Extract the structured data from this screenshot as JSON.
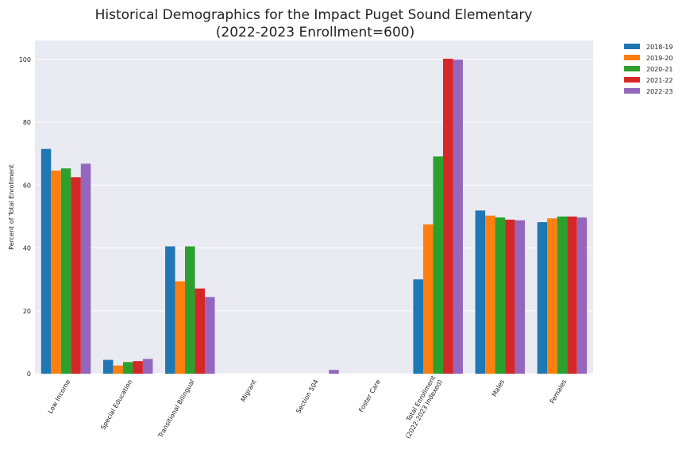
{
  "chart_data": {
    "type": "bar",
    "title": "Historical Demographics for the Impact Puget Sound Elementary",
    "subtitle": "(2022-2023 Enrollment=600)",
    "xlabel": "",
    "ylabel": "Percent of Total Enrollment",
    "ylim": [
      0,
      106
    ],
    "yticks": [
      0,
      20,
      40,
      60,
      80,
      100
    ],
    "grid": true,
    "legend_position": "outside-top-right",
    "categories": [
      "Low Income",
      "Special Education",
      "Transitional Bilingual",
      "Migrant",
      "Section 504",
      "Foster Care",
      "Total Enrollment\n(2022-2023 Indexed)",
      "Males",
      "Females"
    ],
    "series": [
      {
        "name": "2018-19",
        "color": "#1f77b4",
        "values": [
          71.5,
          4.4,
          40.5,
          0,
          0,
          0,
          30.0,
          51.9,
          48.2
        ]
      },
      {
        "name": "2019-20",
        "color": "#ff7f0e",
        "values": [
          64.6,
          2.6,
          29.4,
          0,
          0,
          0,
          47.5,
          50.3,
          49.4
        ]
      },
      {
        "name": "2020-21",
        "color": "#2ca02c",
        "values": [
          65.3,
          3.7,
          40.5,
          0,
          0,
          0,
          69.1,
          49.7,
          50.0
        ]
      },
      {
        "name": "2021-22",
        "color": "#d62728",
        "values": [
          62.5,
          4.0,
          27.1,
          0,
          0,
          0,
          100.2,
          49.0,
          50.0
        ]
      },
      {
        "name": "2022-23",
        "color": "#9467bd",
        "values": [
          66.8,
          4.7,
          24.4,
          0,
          1.2,
          0,
          99.9,
          48.8,
          49.7
        ]
      }
    ]
  }
}
